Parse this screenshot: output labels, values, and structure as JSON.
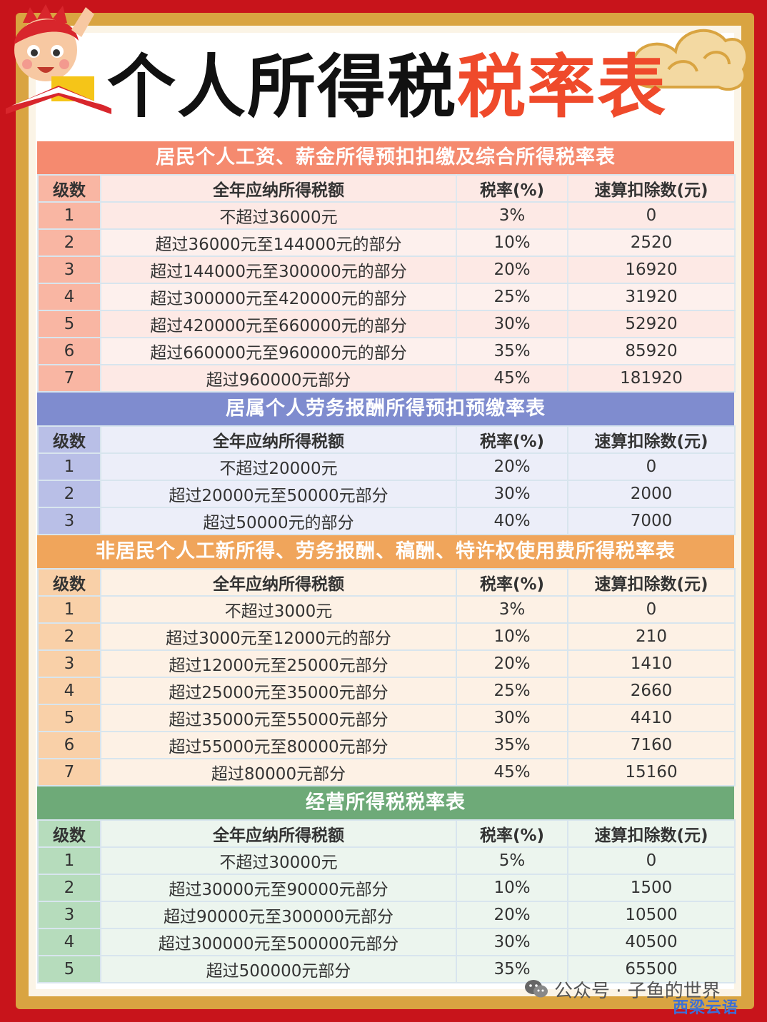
{
  "title": {
    "part1": "个人所得税",
    "part2": "税率表"
  },
  "columns": [
    "级数",
    "全年应纳所得税额",
    "税率(%)",
    "速算扣除数(元)"
  ],
  "sections": [
    {
      "title": "居民个人工资、薪金所得预扣扣缴及综合所得税率表",
      "rows": [
        [
          "1",
          "不超过36000元",
          "3%",
          "0"
        ],
        [
          "2",
          "超过36000元至144000元的部分",
          "10%",
          "2520"
        ],
        [
          "3",
          "超过144000元至300000元的部分",
          "20%",
          "16920"
        ],
        [
          "4",
          "超过300000元至420000元的部分",
          "25%",
          "31920"
        ],
        [
          "5",
          "超过420000元至660000元的部分",
          "30%",
          "52920"
        ],
        [
          "6",
          "超过660000元至960000元的部分",
          "35%",
          "85920"
        ],
        [
          "7",
          "超过960000元部分",
          "45%",
          "181920"
        ]
      ]
    },
    {
      "title": "居属个人劳务报酬所得预扣预缴率表",
      "rows": [
        [
          "1",
          "不超过20000元",
          "20%",
          "0"
        ],
        [
          "2",
          "超过20000元至50000元部分",
          "30%",
          "2000"
        ],
        [
          "3",
          "超过50000元的部分",
          "40%",
          "7000"
        ]
      ]
    },
    {
      "title": "非居民个人工新所得、劳务报酬、稿酬、特许权使用费所得税率表",
      "rows": [
        [
          "1",
          "不超过3000元",
          "3%",
          "0"
        ],
        [
          "2",
          "超过3000元至12000元的部分",
          "10%",
          "210"
        ],
        [
          "3",
          "超过12000元至25000元部分",
          "20%",
          "1410"
        ],
        [
          "4",
          "超过25000元至35000元部分",
          "25%",
          "2660"
        ],
        [
          "5",
          "超过35000元至55000元部分",
          "30%",
          "4410"
        ],
        [
          "6",
          "超过55000元至80000元部分",
          "35%",
          "7160"
        ],
        [
          "7",
          "超过80000元部分",
          "45%",
          "15160"
        ]
      ]
    },
    {
      "title": "经营所得税税率表",
      "rows": [
        [
          "1",
          "不超过30000元",
          "5%",
          "0"
        ],
        [
          "2",
          "超过30000元至90000元部分",
          "10%",
          "1500"
        ],
        [
          "3",
          "超过90000元至300000元部分",
          "20%",
          "10500"
        ],
        [
          "4",
          "超过300000元至500000元部分",
          "30%",
          "40500"
        ],
        [
          "5",
          "超过500000元部分",
          "35%",
          "65500"
        ]
      ]
    }
  ],
  "watermark": {
    "text": "公众号 · 子鱼的世界",
    "brand": "西梁云语"
  },
  "colors": {
    "frame_red": "#c8141b",
    "frame_gold": "#d9a441",
    "title_accent": "#ef4a2b",
    "section1": "#f58a6f",
    "section2": "#7f8ccf",
    "section3": "#f0a55b",
    "section4": "#6eaa78"
  },
  "icons": [
    "mascot-boy-reading",
    "cloud-ornament",
    "wechat-icon"
  ]
}
